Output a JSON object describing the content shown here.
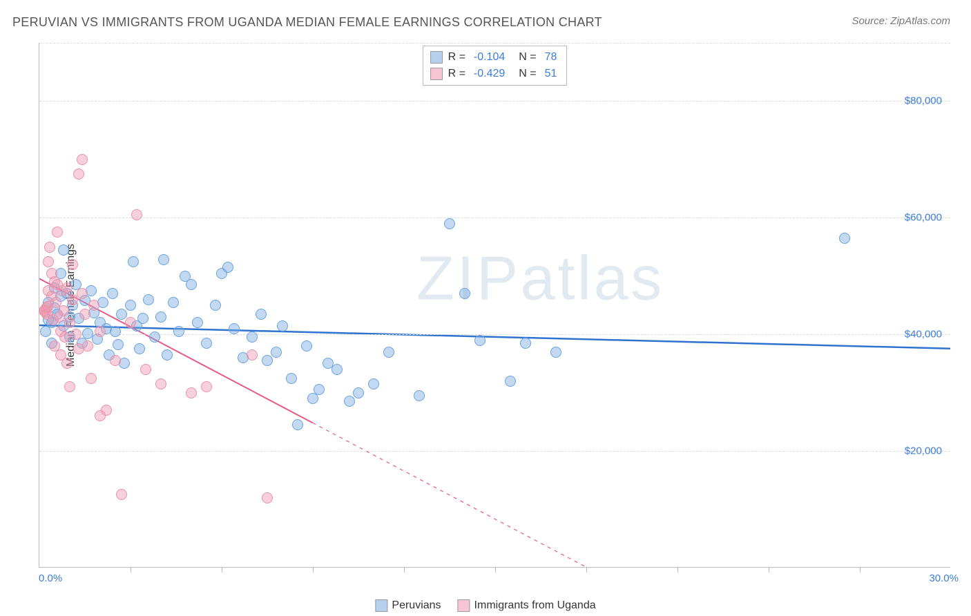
{
  "title": "PERUVIAN VS IMMIGRANTS FROM UGANDA MEDIAN FEMALE EARNINGS CORRELATION CHART",
  "source": "Source: ZipAtlas.com",
  "watermark": "ZIPatlas",
  "chart": {
    "type": "scatter",
    "ylabel": "Median Female Earnings",
    "xlim": [
      0,
      30
    ],
    "ylim": [
      0,
      90000
    ],
    "xlabel_min": "0.0%",
    "xlabel_max": "30.0%",
    "ytick_values": [
      20000,
      40000,
      60000,
      80000
    ],
    "ytick_labels": [
      "$20,000",
      "$40,000",
      "$60,000",
      "$80,000"
    ],
    "xtick_values": [
      3,
      6,
      9,
      12,
      15,
      18,
      21,
      24,
      27
    ],
    "background_color": "#ffffff",
    "grid_color": "#dddddd",
    "text_color": "#333333",
    "accent_color": "#3b7dd8",
    "label_fontsize": 16,
    "point_radius": 8,
    "series": [
      {
        "name": "Peruvians",
        "color_fill": "rgba(120,170,225,0.45)",
        "color_stroke": "#6aa3df",
        "trend_color": "#2f73d0",
        "trend_width": 2.5,
        "trend_dash_after": 30,
        "r": -0.104,
        "n": 78,
        "trend_y_at_x0": 41500,
        "trend_y_at_x30": 37500,
        "points": [
          [
            0.2,
            40500
          ],
          [
            0.3,
            42500
          ],
          [
            0.3,
            45500
          ],
          [
            0.4,
            42000
          ],
          [
            0.5,
            44500
          ],
          [
            0.5,
            48000
          ],
          [
            0.6,
            43500
          ],
          [
            0.7,
            46500
          ],
          [
            0.7,
            50500
          ],
          [
            0.8,
            54500
          ],
          [
            0.8,
            41500
          ],
          [
            0.9,
            47000
          ],
          [
            1.0,
            43000
          ],
          [
            1.0,
            39500
          ],
          [
            1.1,
            45000
          ],
          [
            1.2,
            48500
          ],
          [
            1.3,
            42800
          ],
          [
            1.4,
            38500
          ],
          [
            1.5,
            45800
          ],
          [
            1.6,
            40200
          ],
          [
            1.7,
            47500
          ],
          [
            1.8,
            43700
          ],
          [
            1.9,
            39200
          ],
          [
            2.0,
            42000
          ],
          [
            2.1,
            45500
          ],
          [
            2.2,
            41000
          ],
          [
            2.3,
            36500
          ],
          [
            2.4,
            47000
          ],
          [
            2.5,
            40500
          ],
          [
            2.6,
            38200
          ],
          [
            2.7,
            43500
          ],
          [
            2.8,
            35000
          ],
          [
            3.0,
            45000
          ],
          [
            3.1,
            52500
          ],
          [
            3.2,
            41500
          ],
          [
            3.3,
            37500
          ],
          [
            3.4,
            42800
          ],
          [
            3.6,
            46000
          ],
          [
            3.8,
            39500
          ],
          [
            4.0,
            43000
          ],
          [
            4.1,
            52800
          ],
          [
            4.2,
            36500
          ],
          [
            4.4,
            45500
          ],
          [
            4.6,
            40500
          ],
          [
            4.8,
            50000
          ],
          [
            5.0,
            48500
          ],
          [
            5.2,
            42000
          ],
          [
            5.5,
            38500
          ],
          [
            5.8,
            45000
          ],
          [
            6.0,
            50500
          ],
          [
            6.2,
            51500
          ],
          [
            6.4,
            41000
          ],
          [
            6.7,
            36000
          ],
          [
            7.0,
            39500
          ],
          [
            7.3,
            43500
          ],
          [
            7.5,
            35500
          ],
          [
            7.8,
            37000
          ],
          [
            8.0,
            41500
          ],
          [
            8.3,
            32500
          ],
          [
            8.5,
            24500
          ],
          [
            8.8,
            38000
          ],
          [
            9.0,
            29000
          ],
          [
            9.2,
            30500
          ],
          [
            9.5,
            35000
          ],
          [
            9.8,
            34000
          ],
          [
            10.2,
            28500
          ],
          [
            10.5,
            30000
          ],
          [
            11.0,
            31500
          ],
          [
            11.5,
            37000
          ],
          [
            12.5,
            29500
          ],
          [
            13.5,
            59000
          ],
          [
            14.0,
            47000
          ],
          [
            14.5,
            39000
          ],
          [
            15.5,
            32000
          ],
          [
            16.0,
            38500
          ],
          [
            17.0,
            37000
          ],
          [
            26.5,
            56500
          ],
          [
            0.4,
            38500
          ]
        ]
      },
      {
        "name": "Immigrants from Uganda",
        "color_fill": "rgba(240,150,175,0.45)",
        "color_stroke": "#e792ab",
        "trend_color": "#e85a84",
        "trend_width": 2,
        "trend_dash_after": 9,
        "r": -0.429,
        "n": 51,
        "trend_y_at_x0": 49500,
        "trend_y_at_x30": -33000,
        "points": [
          [
            0.15,
            44000
          ],
          [
            0.18,
            44200
          ],
          [
            0.2,
            43800
          ],
          [
            0.22,
            44500
          ],
          [
            0.25,
            43500
          ],
          [
            0.28,
            44800
          ],
          [
            0.3,
            47500
          ],
          [
            0.3,
            52500
          ],
          [
            0.35,
            55000
          ],
          [
            0.4,
            50500
          ],
          [
            0.4,
            46500
          ],
          [
            0.45,
            42500
          ],
          [
            0.5,
            38000
          ],
          [
            0.5,
            49000
          ],
          [
            0.55,
            45500
          ],
          [
            0.6,
            48500
          ],
          [
            0.6,
            57500
          ],
          [
            0.65,
            43000
          ],
          [
            0.7,
            40500
          ],
          [
            0.7,
            36500
          ],
          [
            0.75,
            47500
          ],
          [
            0.8,
            44000
          ],
          [
            0.85,
            39500
          ],
          [
            0.9,
            48000
          ],
          [
            0.9,
            35000
          ],
          [
            1.0,
            42000
          ],
          [
            1.0,
            31000
          ],
          [
            1.1,
            46000
          ],
          [
            1.1,
            52000
          ],
          [
            1.2,
            40000
          ],
          [
            1.3,
            37500
          ],
          [
            1.4,
            47000
          ],
          [
            1.4,
            70000
          ],
          [
            1.3,
            67500
          ],
          [
            1.5,
            43500
          ],
          [
            1.6,
            38000
          ],
          [
            1.7,
            32500
          ],
          [
            1.8,
            45000
          ],
          [
            2.0,
            26000
          ],
          [
            2.0,
            40500
          ],
          [
            2.2,
            27000
          ],
          [
            2.5,
            35500
          ],
          [
            2.7,
            12500
          ],
          [
            3.0,
            42000
          ],
          [
            3.2,
            60500
          ],
          [
            3.5,
            34000
          ],
          [
            4.0,
            31500
          ],
          [
            5.0,
            30000
          ],
          [
            5.5,
            31000
          ],
          [
            7.0,
            36500
          ],
          [
            7.5,
            12000
          ]
        ]
      }
    ]
  },
  "legend_top": {
    "rows": [
      {
        "swatch": "rgba(120,170,225,0.55)",
        "r_label": "R =",
        "r": "-0.104",
        "n_label": "N =",
        "n": "78"
      },
      {
        "swatch": "rgba(240,150,175,0.55)",
        "r_label": "R =",
        "r": "-0.429",
        "n_label": "N =",
        "n": "51"
      }
    ]
  },
  "legend_bottom": {
    "items": [
      {
        "swatch": "rgba(120,170,225,0.55)",
        "label": "Peruvians"
      },
      {
        "swatch": "rgba(240,150,175,0.55)",
        "label": "Immigrants from Uganda"
      }
    ]
  }
}
